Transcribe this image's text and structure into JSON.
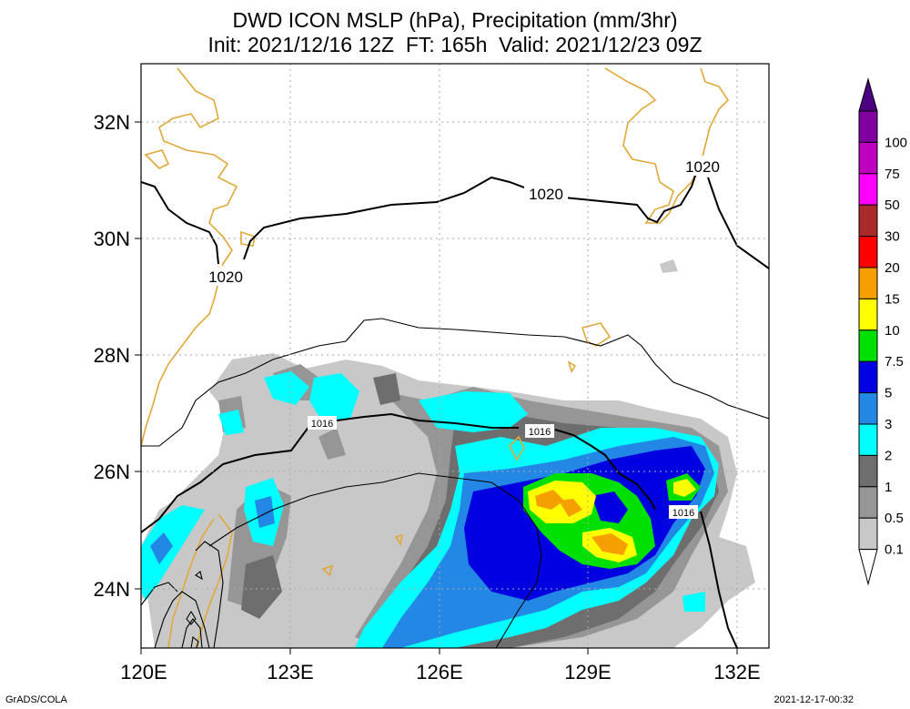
{
  "title": {
    "line1": "DWD ICON MSLP (hPa), Precipitation (mm/3hr)",
    "line2": "Init: 2021/12/16 12Z  FT: 165h  Valid: 2021/12/23 09Z"
  },
  "map": {
    "lon_ticks": [
      "120E",
      "123E",
      "126E",
      "129E",
      "132E"
    ],
    "lat_ticks": [
      "24N",
      "26N",
      "28N",
      "30N",
      "32N"
    ],
    "isobar_labels": [
      "1020",
      "1020",
      "1020",
      "1016",
      "1016",
      "1016"
    ],
    "colors": {
      "coastline": "#e0a838",
      "isobar": "#000000",
      "grid": "#aaaaaa"
    }
  },
  "colorbar": {
    "labels": [
      "0.1",
      "0.5",
      "1",
      "2",
      "3",
      "5",
      "7.5",
      "10",
      "15",
      "20",
      "30",
      "50",
      "75",
      "100"
    ],
    "colors": [
      "#c8c8c8",
      "#969696",
      "#6e6e6e",
      "#00ffff",
      "#2387e6",
      "#0000e0",
      "#00e000",
      "#ffff00",
      "#f5a000",
      "#ff0000",
      "#aa2a2a",
      "#ff00ff",
      "#c000c0",
      "#8000a0",
      "#4a0080"
    ]
  },
  "footer": {
    "left": "GrADS/COLA",
    "right": "2021-12-17-00:32"
  }
}
